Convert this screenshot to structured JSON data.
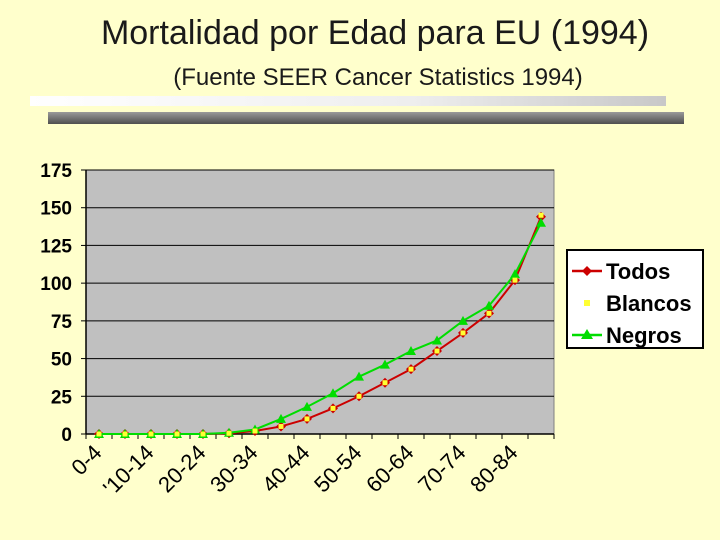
{
  "header": {
    "title": "Mortalidad por Edad para EU (1994)",
    "subtitle": "(Fuente SEER Cancer Statistics 1994)"
  },
  "chart_data": {
    "type": "line",
    "title": "Mortalidad por Edad para EU (1994)",
    "subtitle": "(Fuente SEER Cancer Statistics 1994)",
    "xlabel": "",
    "ylabel": "",
    "ylim": [
      0,
      175
    ],
    "y_ticks": [
      0,
      25,
      50,
      75,
      100,
      125,
      150,
      175
    ],
    "grid": true,
    "legend_position": "right",
    "x_points": 18,
    "x_tick_labels": [
      "0-4",
      "'10-14",
      "20-24",
      "30-34",
      "40-44",
      "50-54",
      "60-64",
      "70-74",
      "80-84"
    ],
    "colors": {
      "Todos": "#cc0000",
      "Blancos": "#ffff33",
      "Negros": "#00dd00"
    },
    "series": [
      {
        "name": "Todos",
        "values": [
          0,
          0,
          0,
          0,
          0,
          0.5,
          2,
          5,
          10,
          17,
          25,
          34,
          43,
          55,
          67,
          80,
          102,
          144
        ]
      },
      {
        "name": "Blancos",
        "values": [
          0,
          0,
          0,
          0,
          0,
          0.5,
          2,
          5,
          10,
          17,
          25,
          34,
          43,
          55,
          67,
          80,
          102,
          145
        ]
      },
      {
        "name": "Negros",
        "values": [
          0,
          0,
          0,
          0,
          0,
          0.8,
          3,
          10,
          18,
          27,
          38,
          46,
          55,
          62,
          75,
          85,
          106,
          140
        ]
      }
    ]
  }
}
